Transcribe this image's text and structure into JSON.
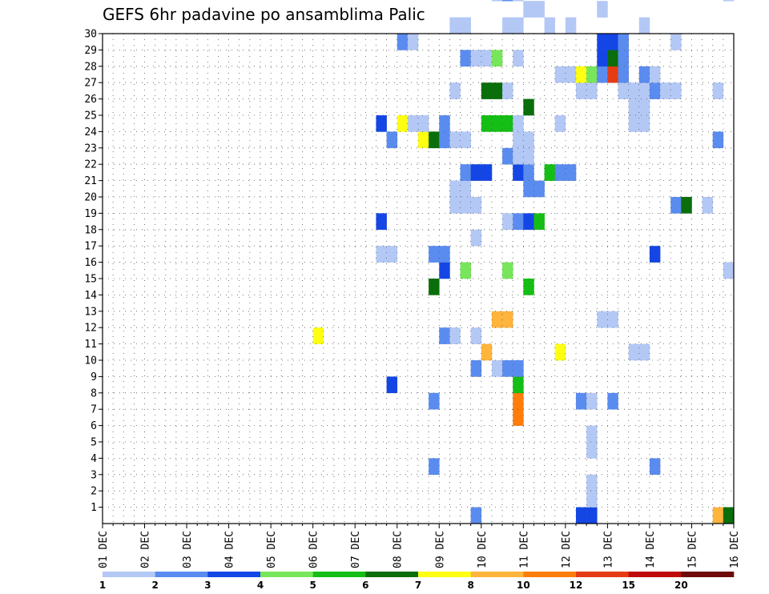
{
  "chart_data": {
    "type": "heatmap",
    "title": "GEFS 6hr padavine po ansamblima Palic",
    "xlabel": "",
    "ylabel": "",
    "x_ticks": [
      "01 DEC",
      "02 DEC",
      "03 DEC",
      "04 DEC",
      "05 DEC",
      "06 DEC",
      "07 DEC",
      "08 DEC",
      "09 DEC",
      "10 DEC",
      "11 DEC",
      "12 DEC",
      "13 DEC",
      "14 DEC",
      "15 DEC",
      "16 DEC"
    ],
    "y_ticks": [
      "1",
      "2",
      "3",
      "4",
      "5",
      "6",
      "7",
      "8",
      "9",
      "10",
      "11",
      "12",
      "13",
      "14",
      "15",
      "16",
      "17",
      "18",
      "19",
      "20",
      "21",
      "22",
      "23",
      "24",
      "25",
      "26",
      "27",
      "28",
      "29",
      "30"
    ],
    "xlim": [
      0,
      60
    ],
    "ylim": [
      0,
      30
    ],
    "grid": true,
    "colorbar": {
      "labels": [
        "1",
        "2",
        "3",
        "4",
        "5",
        "6",
        "7",
        "8",
        "10",
        "12",
        "15",
        "20"
      ],
      "colors": [
        "#b4c8f5",
        "#5a8cf0",
        "#1446e6",
        "#78e65a",
        "#14be14",
        "#0a6e0a",
        "#ffff14",
        "#ffb43c",
        "#ff7d0a",
        "#e63c14",
        "#be0a0a",
        "#6e0a0a"
      ]
    },
    "cells": [
      [
        35,
        0,
        2
      ],
      [
        45,
        0,
        3
      ],
      [
        46,
        0,
        3
      ],
      [
        58,
        0,
        8
      ],
      [
        59,
        0,
        6
      ],
      [
        46,
        1,
        1
      ],
      [
        46,
        2,
        1
      ],
      [
        31,
        3,
        2
      ],
      [
        52,
        3,
        2
      ],
      [
        46,
        4,
        1
      ],
      [
        46,
        5,
        1
      ],
      [
        39,
        6,
        9
      ],
      [
        31,
        7,
        2
      ],
      [
        39,
        7,
        9
      ],
      [
        45,
        7,
        2
      ],
      [
        46,
        7,
        1
      ],
      [
        48,
        7,
        2
      ],
      [
        27,
        8,
        3
      ],
      [
        39,
        8,
        5
      ],
      [
        35,
        9,
        2
      ],
      [
        37,
        9,
        1
      ],
      [
        38,
        9,
        2
      ],
      [
        39,
        9,
        2
      ],
      [
        36,
        10,
        8
      ],
      [
        43,
        10,
        7
      ],
      [
        50,
        10,
        1
      ],
      [
        51,
        10,
        1
      ],
      [
        20,
        11,
        7
      ],
      [
        32,
        11,
        2
      ],
      [
        33,
        11,
        1
      ],
      [
        35,
        11,
        1
      ],
      [
        37,
        12,
        8
      ],
      [
        38,
        12,
        8
      ],
      [
        47,
        12,
        1
      ],
      [
        48,
        12,
        1
      ],
      [
        31,
        14,
        6
      ],
      [
        40,
        14,
        5
      ],
      [
        32,
        15,
        3
      ],
      [
        34,
        15,
        4
      ],
      [
        38,
        15,
        4
      ],
      [
        59,
        15,
        1
      ],
      [
        26,
        16,
        1
      ],
      [
        27,
        16,
        1
      ],
      [
        31,
        16,
        2
      ],
      [
        32,
        16,
        2
      ],
      [
        52,
        16,
        3
      ],
      [
        60,
        16,
        2
      ],
      [
        35,
        17,
        1
      ],
      [
        26,
        18,
        3
      ],
      [
        38,
        18,
        1
      ],
      [
        39,
        18,
        2
      ],
      [
        40,
        18,
        3
      ],
      [
        41,
        18,
        5
      ],
      [
        33,
        19,
        1
      ],
      [
        34,
        19,
        1
      ],
      [
        35,
        19,
        1
      ],
      [
        54,
        19,
        2
      ],
      [
        55,
        19,
        6
      ],
      [
        57,
        19,
        1
      ],
      [
        33,
        20,
        1
      ],
      [
        34,
        20,
        1
      ],
      [
        40,
        20,
        2
      ],
      [
        41,
        20,
        2
      ],
      [
        34,
        21,
        2
      ],
      [
        35,
        21,
        3
      ],
      [
        36,
        21,
        3
      ],
      [
        39,
        21,
        3
      ],
      [
        40,
        21,
        2
      ],
      [
        42,
        21,
        5
      ],
      [
        43,
        21,
        2
      ],
      [
        44,
        21,
        2
      ],
      [
        38,
        22,
        2
      ],
      [
        39,
        22,
        1
      ],
      [
        40,
        22,
        1
      ],
      [
        27,
        23,
        2
      ],
      [
        30,
        23,
        7
      ],
      [
        31,
        23,
        6
      ],
      [
        32,
        23,
        2
      ],
      [
        33,
        23,
        1
      ],
      [
        34,
        23,
        1
      ],
      [
        39,
        23,
        1
      ],
      [
        40,
        23,
        1
      ],
      [
        58,
        23,
        2
      ],
      [
        26,
        24,
        3
      ],
      [
        29,
        24,
        1
      ],
      [
        28,
        24,
        7
      ],
      [
        30,
        24,
        1
      ],
      [
        32,
        24,
        2
      ],
      [
        36,
        24,
        5
      ],
      [
        37,
        24,
        5
      ],
      [
        38,
        24,
        5
      ],
      [
        39,
        24,
        1
      ],
      [
        43,
        24,
        1
      ],
      [
        50,
        24,
        1
      ],
      [
        51,
        24,
        1
      ],
      [
        50,
        25,
        1
      ],
      [
        51,
        25,
        1
      ],
      [
        40,
        25,
        6
      ],
      [
        33,
        26,
        1
      ],
      [
        36,
        26,
        6
      ],
      [
        37,
        26,
        6
      ],
      [
        38,
        26,
        1
      ],
      [
        45,
        26,
        1
      ],
      [
        46,
        26,
        1
      ],
      [
        49,
        26,
        1
      ],
      [
        50,
        26,
        1
      ],
      [
        51,
        26,
        1
      ],
      [
        52,
        26,
        2
      ],
      [
        53,
        26,
        1
      ],
      [
        54,
        26,
        1
      ],
      [
        58,
        26,
        1
      ],
      [
        43,
        27,
        1
      ],
      [
        44,
        27,
        1
      ],
      [
        45,
        27,
        7
      ],
      [
        46,
        27,
        4
      ],
      [
        47,
        27,
        2
      ],
      [
        48,
        27,
        10
      ],
      [
        49,
        27,
        2
      ],
      [
        51,
        27,
        2
      ],
      [
        52,
        27,
        1
      ],
      [
        34,
        28,
        2
      ],
      [
        35,
        28,
        1
      ],
      [
        36,
        28,
        1
      ],
      [
        37,
        28,
        4
      ],
      [
        39,
        28,
        1
      ],
      [
        47,
        28,
        3
      ],
      [
        48,
        28,
        6
      ],
      [
        49,
        28,
        2
      ],
      [
        28,
        29,
        2
      ],
      [
        29,
        29,
        1
      ],
      [
        47,
        29,
        3
      ],
      [
        48,
        29,
        3
      ],
      [
        49,
        29,
        2
      ],
      [
        54,
        29,
        1
      ],
      [
        33,
        30,
        1
      ],
      [
        34,
        30,
        1
      ],
      [
        38,
        30,
        1
      ],
      [
        39,
        30,
        1
      ],
      [
        42,
        30,
        1
      ],
      [
        44,
        30,
        1
      ],
      [
        51,
        30,
        1
      ],
      [
        40,
        31,
        1
      ],
      [
        41,
        31,
        1
      ],
      [
        47,
        31,
        1
      ],
      [
        37,
        32,
        1
      ],
      [
        38,
        32,
        2
      ],
      [
        39,
        32,
        1
      ],
      [
        59,
        32,
        1
      ],
      [
        36,
        33,
        1
      ],
      [
        53,
        33,
        1
      ],
      [
        31,
        34,
        1
      ],
      [
        37,
        34,
        2
      ],
      [
        38,
        34,
        2
      ],
      [
        39,
        34,
        1
      ],
      [
        40,
        34,
        2
      ],
      [
        34,
        35,
        1
      ],
      [
        37,
        35,
        3
      ],
      [
        38,
        35,
        6
      ],
      [
        39,
        35,
        6
      ],
      [
        40,
        35,
        1
      ],
      [
        41,
        35,
        2
      ],
      [
        42,
        35,
        1
      ],
      [
        43,
        35,
        1
      ],
      [
        44,
        35,
        1
      ],
      [
        45,
        35,
        1
      ],
      [
        46,
        35,
        1
      ],
      [
        47,
        35,
        1
      ],
      [
        48,
        35,
        2
      ],
      [
        49,
        35,
        1
      ],
      [
        50,
        35,
        1
      ],
      [
        51,
        35,
        3
      ],
      [
        52,
        35,
        1
      ],
      [
        53,
        35,
        1
      ],
      [
        35,
        36,
        4
      ],
      [
        38,
        36,
        1
      ],
      [
        40,
        36,
        2
      ],
      [
        41,
        36,
        2
      ],
      [
        42,
        36,
        2
      ],
      [
        44,
        36,
        2
      ],
      [
        45,
        36,
        2
      ],
      [
        36,
        37,
        1
      ],
      [
        43,
        37,
        2
      ],
      [
        33,
        38,
        1
      ],
      [
        34,
        38,
        1
      ],
      [
        38,
        38,
        1
      ],
      [
        40,
        38,
        1
      ],
      [
        44,
        38,
        1
      ],
      [
        45,
        38,
        1
      ],
      [
        46,
        38,
        1
      ],
      [
        50,
        38,
        1
      ],
      [
        34,
        39,
        1
      ],
      [
        35,
        39,
        1
      ],
      [
        38,
        39,
        1
      ],
      [
        39,
        39,
        5
      ],
      [
        40,
        39,
        3
      ],
      [
        44,
        39,
        1
      ],
      [
        45,
        39,
        3
      ],
      [
        38,
        40,
        5
      ],
      [
        39,
        40,
        5
      ],
      [
        40,
        40,
        1
      ],
      [
        43,
        40,
        2
      ],
      [
        44,
        40,
        2
      ],
      [
        47,
        40,
        4
      ],
      [
        48,
        40,
        4
      ],
      [
        39,
        41,
        3
      ],
      [
        40,
        41,
        2
      ],
      [
        41,
        41,
        2
      ],
      [
        46,
        41,
        1
      ],
      [
        46,
        42,
        1
      ],
      [
        47,
        42,
        2
      ],
      [
        48,
        42,
        1
      ],
      [
        34,
        43,
        1
      ],
      [
        35,
        43,
        1
      ],
      [
        45,
        43,
        1
      ],
      [
        46,
        43,
        3
      ],
      [
        47,
        43,
        2
      ],
      [
        48,
        43,
        2
      ],
      [
        49,
        43,
        1
      ],
      [
        38,
        44,
        1
      ],
      [
        45,
        44,
        2
      ],
      [
        53,
        44,
        1
      ],
      [
        37,
        45,
        1
      ],
      [
        44,
        45,
        8
      ],
      [
        45,
        45,
        8
      ],
      [
        46,
        45,
        1
      ],
      [
        37,
        46,
        1
      ],
      [
        40,
        46,
        1
      ],
      [
        41,
        46,
        1
      ],
      [
        44,
        46,
        4
      ],
      [
        45,
        46,
        5
      ],
      [
        49,
        46,
        2
      ],
      [
        42,
        47,
        1
      ],
      [
        46,
        47,
        3
      ],
      [
        47,
        47,
        3
      ],
      [
        48,
        47,
        2
      ],
      [
        51,
        47,
        1
      ],
      [
        34,
        48,
        8
      ],
      [
        36,
        48,
        1
      ],
      [
        37,
        48,
        1
      ],
      [
        52,
        49,
        1
      ],
      [
        53,
        49,
        1
      ],
      [
        54,
        49,
        1
      ],
      [
        35,
        50,
        1
      ],
      [
        36,
        50,
        1
      ],
      [
        50,
        50,
        1
      ],
      [
        35,
        51,
        1
      ],
      [
        37,
        51,
        1
      ],
      [
        38,
        51,
        1
      ],
      [
        40,
        51,
        1
      ],
      [
        42,
        51,
        2
      ],
      [
        43,
        51,
        3
      ],
      [
        44,
        51,
        1
      ],
      [
        44,
        52,
        1
      ],
      [
        45,
        52,
        1
      ],
      [
        46,
        52,
        3
      ],
      [
        47,
        52,
        1
      ],
      [
        50,
        53,
        1
      ],
      [
        51,
        53,
        1
      ],
      [
        57,
        53,
        2
      ],
      [
        58,
        53,
        5
      ],
      [
        50,
        54,
        1
      ],
      [
        51,
        54,
        1
      ],
      [
        59,
        54,
        1
      ],
      [
        61,
        54,
        1
      ],
      [
        55,
        55,
        1
      ],
      [
        58,
        55,
        2
      ],
      [
        60,
        55,
        8
      ],
      [
        61,
        55,
        6
      ]
    ]
  }
}
